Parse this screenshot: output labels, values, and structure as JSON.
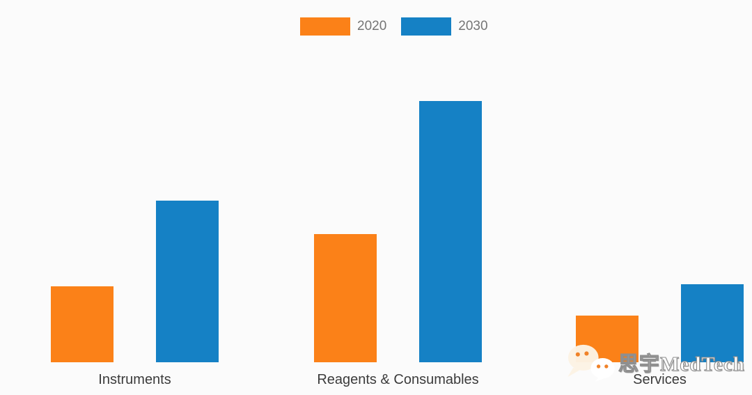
{
  "chart_data": {
    "type": "bar",
    "title": "",
    "categories": [
      "Instruments",
      "Reagents & Consumables",
      "Services"
    ],
    "series": [
      {
        "name": "2020",
        "color": "#FB8118",
        "values": [
          29,
          49,
          18
        ]
      },
      {
        "name": "2030",
        "color": "#1581C5",
        "values": [
          62,
          100,
          30
        ]
      }
    ],
    "ylim": [
      0,
      100
    ],
    "units": "relative (no y-axis shown; tallest bar normalized to 100)",
    "legend_position": "top-center",
    "grid": false,
    "axes_shown": false
  },
  "watermark": {
    "icon": "wechat-icon",
    "text": "思宇MedTech"
  },
  "colors": {
    "background": "#fbfbfb",
    "category_label": "#3b3b3b",
    "legend_text": "#757575",
    "series_2020": "#FB8118",
    "series_2030": "#1581C5"
  }
}
